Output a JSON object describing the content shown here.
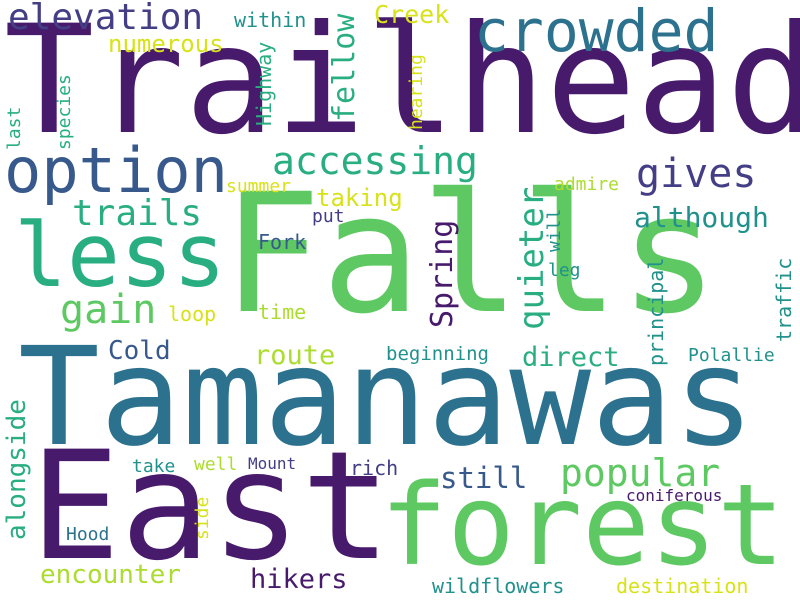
{
  "palette": {
    "dark_purple": "#481a6c",
    "indigo": "#433e85",
    "slate_blue": "#38598c",
    "steel_blue": "#2c728e",
    "teal": "#21918c",
    "sea_green": "#28ae80",
    "green": "#5ec962",
    "lime": "#addc30",
    "yellow": "#d8e219"
  },
  "words": {
    "trailhead": "Trailhead",
    "falls": "Falls",
    "tamanawas": "Tamanawas",
    "east": "East",
    "forest": "forest",
    "crowded": "crowded",
    "option": "option",
    "less": "less",
    "accessing": "accessing",
    "elevation": "elevation",
    "gives": "gives",
    "trails": "trails",
    "quieter": "quieter",
    "popular": "popular",
    "hikers": "hikers",
    "creek": "Creek",
    "fellow": "fellow",
    "highway": "Highway",
    "within": "within",
    "numerous": "numerous",
    "hearing": "hearing",
    "species": "species",
    "last": "last",
    "gain": "gain",
    "loop": "loop",
    "spring": "Spring",
    "taking": "taking",
    "summer": "summer",
    "put": "put",
    "fork": "Fork",
    "time": "time",
    "admire": "admire",
    "although": "although",
    "will": "will",
    "leg": "leg",
    "principal": "principal",
    "traffic": "traffic",
    "cold": "Cold",
    "route": "route",
    "beginning": "beginning",
    "direct": "direct",
    "polallie": "Polallie",
    "alongside": "alongside",
    "take": "take",
    "well": "well",
    "mount": "Mount",
    "rich": "rich",
    "still": "still",
    "coniferous": "coniferous",
    "side": "side",
    "hood": "Hood",
    "encounter": "encounter",
    "wildflowers": "wildflowers",
    "destination": "destination"
  }
}
